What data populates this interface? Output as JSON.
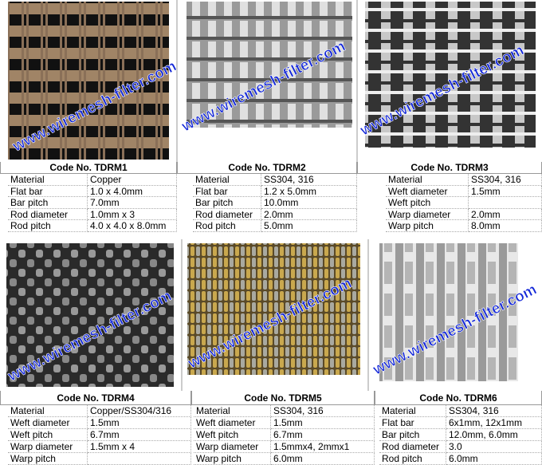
{
  "watermark": "www.wiremesh-filter.com",
  "groups": [
    {
      "panels": [
        {
          "code": "Code No. TDRM1",
          "rows": [
            [
              "Material",
              "Copper"
            ],
            [
              "Flat bar",
              "1.0 x 4.0mm"
            ],
            [
              "Bar pitch",
              "7.0mm"
            ],
            [
              "Rod diameter",
              "1.0mm x 3"
            ],
            [
              "Rod pitch",
              "4.0 x 4.0 x 8.0mm"
            ]
          ]
        },
        {
          "code": "Code No. TDRM2",
          "rows": [
            [
              "Material",
              "SS304, 316"
            ],
            [
              "Flat bar",
              "1.2 x 5.0mm"
            ],
            [
              "Bar pitch",
              "10.0mm"
            ],
            [
              "Rod diameter",
              "2.0mm"
            ],
            [
              "Rod pitch",
              "5.0mm"
            ]
          ]
        },
        {
          "code": "Code No. TDRM3",
          "rows": [
            [
              "Material",
              "SS304, 316"
            ],
            [
              "Weft diameter",
              "1.5mm"
            ],
            [
              "Weft pitch"
            ],
            [
              "Warp diameter",
              "2.0mm"
            ],
            [
              "Warp pitch",
              "8.0mm"
            ]
          ]
        }
      ]
    },
    {
      "panels": [
        {
          "code": "Code No. TDRM4",
          "rows": [
            [
              "Material",
              "Copper/SS304/316"
            ],
            [
              "Weft diameter",
              "1.5mm"
            ],
            [
              "Weft pitch",
              "6.7mm"
            ],
            [
              "Warp diameter",
              "1.5mm x 4"
            ],
            [
              "Warp pitch"
            ]
          ]
        },
        {
          "code": "Code No. TDRM5",
          "rows": [
            [
              "Material",
              "SS304, 316"
            ],
            [
              "Weft diameter",
              "1.5mm"
            ],
            [
              "Weft pitch",
              "6.7mm"
            ],
            [
              "Warp diameter",
              "1.5mmx4, 2mmx1"
            ],
            [
              "Warp pitch",
              "6.0mm"
            ]
          ]
        },
        {
          "code": "Code No. TDRM6",
          "rows": [
            [
              "Material",
              "SS304, 316"
            ],
            [
              "Flat bar",
              "6x1mm, 12x1mm"
            ],
            [
              "Bar pitch",
              "12.0mm, 6.0mm"
            ],
            [
              "Rod diameter",
              "3.0"
            ],
            [
              "Rod pitch",
              "6.0mm"
            ]
          ]
        }
      ]
    }
  ]
}
